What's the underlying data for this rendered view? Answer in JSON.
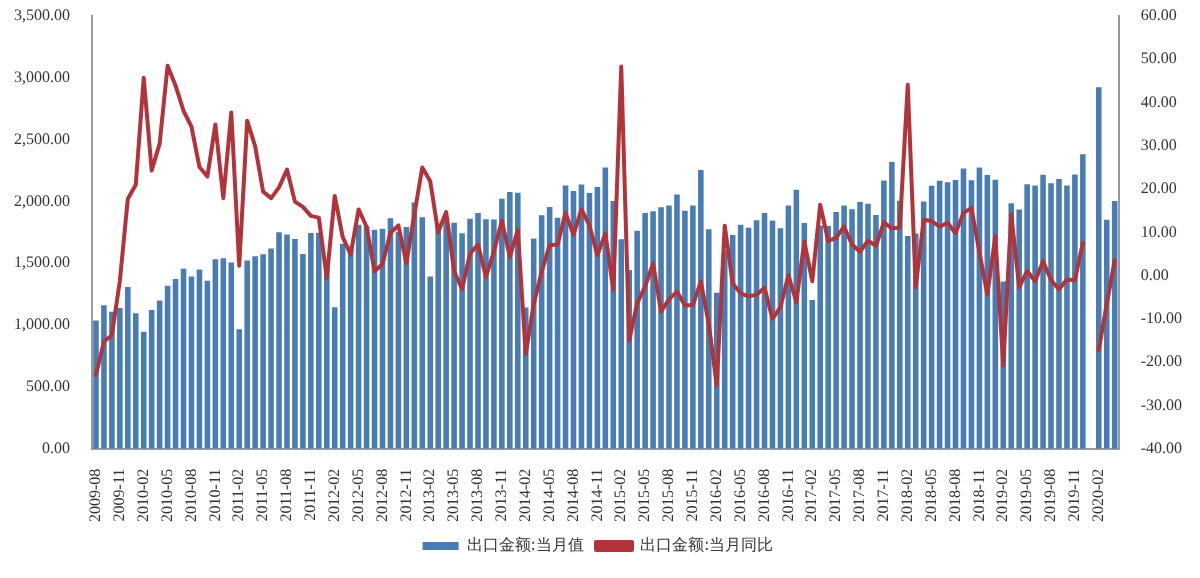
{
  "chart_data": {
    "type": "bar",
    "categories": [
      "2009-08",
      null,
      null,
      "2009-11",
      null,
      null,
      "2010-02",
      null,
      null,
      "2010-05",
      null,
      null,
      "2010-08",
      null,
      null,
      "2010-11",
      null,
      null,
      "2011-02",
      null,
      null,
      "2011-05",
      null,
      null,
      "2011-08",
      null,
      null,
      "2011-11",
      null,
      null,
      "2012-02",
      null,
      null,
      "2012-05",
      null,
      null,
      "2012-08",
      null,
      null,
      "2012-11",
      null,
      null,
      "2013-02",
      null,
      null,
      "2013-05",
      null,
      null,
      "2013-08",
      null,
      null,
      "2013-11",
      null,
      null,
      "2014-02",
      null,
      null,
      "2014-05",
      null,
      null,
      "2014-08",
      null,
      null,
      "2014-11",
      null,
      null,
      "2015-02",
      null,
      null,
      "2015-05",
      null,
      null,
      "2015-08",
      null,
      null,
      "2015-11",
      null,
      null,
      "2016-02",
      null,
      null,
      "2016-05",
      null,
      null,
      "2016-08",
      null,
      null,
      "2016-11",
      null,
      null,
      "2017-02",
      null,
      null,
      "2017-05",
      null,
      null,
      "2017-08",
      null,
      null,
      "2017-11",
      null,
      null,
      "2018-02",
      null,
      null,
      "2018-05",
      null,
      null,
      "2018-08",
      null,
      null,
      "2018-11",
      null,
      null,
      "2019-02",
      null,
      null,
      "2019-05",
      null,
      null,
      "2019-08",
      null,
      null,
      "2019-11",
      null,
      null,
      "2020-02",
      null,
      null
    ],
    "series": [
      {
        "name": "出口金额:当月值",
        "color": "#4a7cb4",
        "values": [
          1037,
          1160,
          1107,
          1137,
          1307,
          1095,
          945,
          1121,
          1199,
          1317,
          1373,
          1455,
          1392,
          1450,
          1359,
          1533,
          1541,
          1507,
          967,
          1522,
          1557,
          1572,
          1619,
          1751,
          1733,
          1697,
          1575,
          1745,
          1747,
          1499,
          1144,
          1657,
          1633,
          1811,
          1802,
          1770,
          1780,
          1863,
          1755,
          1794,
          1992,
          1873,
          1393,
          1821,
          1871,
          1827,
          1743,
          1860,
          1907,
          1856,
          1854,
          2022,
          2077,
          2071,
          1141,
          1701,
          1889,
          1955,
          1868,
          2129,
          2085,
          2137,
          2069,
          2117,
          2275,
          2004,
          1694,
          1446,
          1763,
          1907,
          1921,
          1952,
          1968,
          2056,
          1924,
          1968,
          2254,
          1774,
          1262,
          1604,
          1728,
          1811,
          1787,
          1847,
          1906,
          1845,
          1784,
          1968,
          2094,
          1826,
          1203,
          1806,
          1801,
          1915,
          1967,
          1936,
          1995,
          1981,
          1890,
          2170,
          2319,
          2005,
          1721,
          1741,
          2000,
          2127,
          2168,
          2155,
          2174,
          2266,
          2171,
          2274,
          2213,
          2176,
          1352,
          1986,
          1934,
          2138,
          2128,
          2215,
          2148,
          2182,
          2129,
          2217,
          2381,
          null,
          2924,
          1852,
          2003
        ]
      },
      {
        "name": "出口金额:当月同比",
        "type": "line",
        "axis": "y2",
        "color": "#b0343a",
        "values": [
          -23.0,
          -15.2,
          -13.8,
          -1.2,
          17.7,
          21,
          45.7,
          24.3,
          30.5,
          48.5,
          43.9,
          38.1,
          34.4,
          25.1,
          22.9,
          34.9,
          17.9,
          37.7,
          2.3,
          35.8,
          29.9,
          19.4,
          17.9,
          20.4,
          24.5,
          17.1,
          15.9,
          13.8,
          13.4,
          -0.5,
          18.4,
          8.9,
          4.9,
          15.3,
          11.3,
          1.0,
          2.7,
          9.9,
          11.6,
          2.9,
          14.1,
          25.0,
          21.8,
          10.0,
          14.7,
          1.0,
          -3.1,
          5.1,
          7.2,
          -0.3,
          5.6,
          12.7,
          4.3,
          10.6,
          -18.1,
          -6.6,
          0.9,
          7.0,
          7.2,
          14.5,
          9.4,
          15.3,
          11.6,
          4.7,
          9.7,
          -3.3,
          48.3,
          -15.0,
          -6.4,
          -2.5,
          2.8,
          -8.3,
          -5.5,
          -3.7,
          -6.9,
          -6.8,
          -1.4,
          -11.2,
          -25.4,
          11.5,
          -1.8,
          -4.1,
          -4.8,
          -4.4,
          -2.8,
          -10.0,
          -7.3,
          0.1,
          -6.1,
          7.9,
          -1.3,
          16.4,
          8.0,
          8.7,
          11.3,
          7.2,
          5.5,
          8.1,
          6.9,
          12.3,
          10.9,
          11.1,
          44.1,
          -2.7,
          12.9,
          12.6,
          11.3,
          12.2,
          9.8,
          14.5,
          15.6,
          5.4,
          -4.4,
          9.1,
          -20.7,
          14.2,
          -2.7,
          1.1,
          -1.3,
          3.3,
          -1.0,
          -3.2,
          -0.9,
          -1.1,
          7.6,
          null,
          -17.2,
          -6.6,
          3.5
        ]
      }
    ],
    "ylim": [
      0,
      3500
    ],
    "yticks": [
      {
        "value": 0,
        "label": "0.00"
      },
      {
        "value": 500,
        "label": "500.00"
      },
      {
        "value": 1000,
        "label": "1,000.00"
      },
      {
        "value": 1500,
        "label": "1,500.00"
      },
      {
        "value": 2000,
        "label": "2,000.00"
      },
      {
        "value": 2500,
        "label": "2,500.00"
      },
      {
        "value": 3000,
        "label": "3,000.00"
      },
      {
        "value": 3500,
        "label": "3,500.00"
      }
    ],
    "y2lim": [
      -40,
      60
    ],
    "y2ticks": [
      {
        "value": -40,
        "label": "-40.00"
      },
      {
        "value": -30,
        "label": "-30.00"
      },
      {
        "value": -20,
        "label": "-20.00"
      },
      {
        "value": -10,
        "label": "-10.00"
      },
      {
        "value": 0,
        "label": "0.00"
      },
      {
        "value": 10,
        "label": "10.00"
      },
      {
        "value": 20,
        "label": "20.00"
      },
      {
        "value": 30,
        "label": "30.00"
      },
      {
        "value": 40,
        "label": "40.00"
      },
      {
        "value": 50,
        "label": "50.00"
      },
      {
        "value": 60,
        "label": "60.00"
      }
    ],
    "grid": false,
    "legend": "bottom",
    "marker": "none",
    "line_style": "solid"
  }
}
